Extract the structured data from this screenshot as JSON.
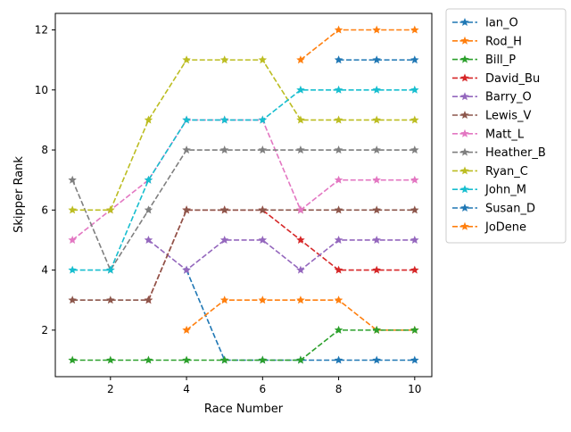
{
  "chart_data": {
    "type": "line",
    "xlabel": "Race Number",
    "ylabel": "Skipper Rank",
    "xlim": [
      0.55,
      10.45
    ],
    "ylim": [
      0.45,
      12.55
    ],
    "xticks": [
      2,
      4,
      6,
      8,
      10
    ],
    "yticks": [
      2,
      4,
      6,
      8,
      10,
      12
    ],
    "grid": false,
    "legend_placement": "outside-right-top",
    "marker": "star",
    "linestyle": "dashed",
    "series": [
      {
        "name": "Ian_O",
        "color": "#1f77b4",
        "points": [
          [
            4,
            4
          ],
          [
            5,
            1
          ],
          [
            6,
            1
          ],
          [
            7,
            1
          ],
          [
            8,
            1
          ],
          [
            9,
            1
          ],
          [
            10,
            1
          ]
        ]
      },
      {
        "name": "Rod_H",
        "color": "#ff7f0e",
        "points": [
          [
            4,
            2
          ],
          [
            5,
            3
          ],
          [
            6,
            3
          ],
          [
            7,
            3
          ],
          [
            8,
            3
          ],
          [
            9,
            2
          ],
          [
            10,
            2
          ]
        ]
      },
      {
        "name": "Bill_P",
        "color": "#2ca02c",
        "points": [
          [
            1,
            1
          ],
          [
            2,
            1
          ],
          [
            3,
            1
          ],
          [
            4,
            1
          ],
          [
            5,
            1
          ],
          [
            6,
            1
          ],
          [
            7,
            1
          ],
          [
            8,
            2
          ],
          [
            9,
            2
          ],
          [
            10,
            2
          ]
        ]
      },
      {
        "name": "David_Bu",
        "color": "#d62728",
        "points": [
          [
            3,
            3
          ],
          [
            4,
            6
          ],
          [
            5,
            6
          ],
          [
            6,
            6
          ],
          [
            7,
            5
          ],
          [
            8,
            4
          ],
          [
            9,
            4
          ],
          [
            10,
            4
          ]
        ]
      },
      {
        "name": "Barry_O",
        "color": "#9467bd",
        "points": [
          [
            3,
            5
          ],
          [
            4,
            4
          ],
          [
            5,
            5
          ],
          [
            6,
            5
          ],
          [
            7,
            4
          ],
          [
            8,
            5
          ],
          [
            9,
            5
          ],
          [
            10,
            5
          ]
        ]
      },
      {
        "name": "Lewis_V",
        "color": "#8c564b",
        "points": [
          [
            1,
            3
          ],
          [
            2,
            3
          ],
          [
            3,
            3
          ],
          [
            4,
            6
          ],
          [
            5,
            6
          ],
          [
            6,
            6
          ],
          [
            7,
            6
          ],
          [
            8,
            6
          ],
          [
            9,
            6
          ],
          [
            10,
            6
          ]
        ]
      },
      {
        "name": "Matt_L",
        "color": "#e377c2",
        "points": [
          [
            1,
            5
          ],
          [
            2,
            6
          ],
          [
            3,
            7
          ],
          [
            4,
            9
          ],
          [
            5,
            9
          ],
          [
            6,
            9
          ],
          [
            7,
            6
          ],
          [
            8,
            7
          ],
          [
            9,
            7
          ],
          [
            10,
            7
          ]
        ]
      },
      {
        "name": "Heather_B",
        "color": "#7f7f7f",
        "points": [
          [
            1,
            7
          ],
          [
            2,
            4
          ],
          [
            3,
            6
          ],
          [
            4,
            8
          ],
          [
            5,
            8
          ],
          [
            6,
            8
          ],
          [
            7,
            8
          ],
          [
            8,
            8
          ],
          [
            9,
            8
          ],
          [
            10,
            8
          ]
        ]
      },
      {
        "name": "Ryan_C",
        "color": "#bcbd22",
        "points": [
          [
            1,
            6
          ],
          [
            2,
            6
          ],
          [
            3,
            9
          ],
          [
            4,
            11
          ],
          [
            5,
            11
          ],
          [
            6,
            11
          ],
          [
            7,
            9
          ],
          [
            8,
            9
          ],
          [
            9,
            9
          ],
          [
            10,
            9
          ]
        ]
      },
      {
        "name": "John_M",
        "color": "#17becf",
        "points": [
          [
            1,
            4
          ],
          [
            2,
            4
          ],
          [
            3,
            7
          ],
          [
            4,
            9
          ],
          [
            5,
            9
          ],
          [
            6,
            9
          ],
          [
            7,
            10
          ],
          [
            8,
            10
          ],
          [
            9,
            10
          ],
          [
            10,
            10
          ]
        ]
      },
      {
        "name": "Susan_D",
        "color": "#1f77b4",
        "points": [
          [
            8,
            11
          ],
          [
            9,
            11
          ],
          [
            10,
            11
          ]
        ]
      },
      {
        "name": "JoDene",
        "color": "#ff7f0e",
        "points": [
          [
            7,
            11
          ],
          [
            8,
            12
          ],
          [
            9,
            12
          ],
          [
            10,
            12
          ]
        ]
      }
    ]
  }
}
